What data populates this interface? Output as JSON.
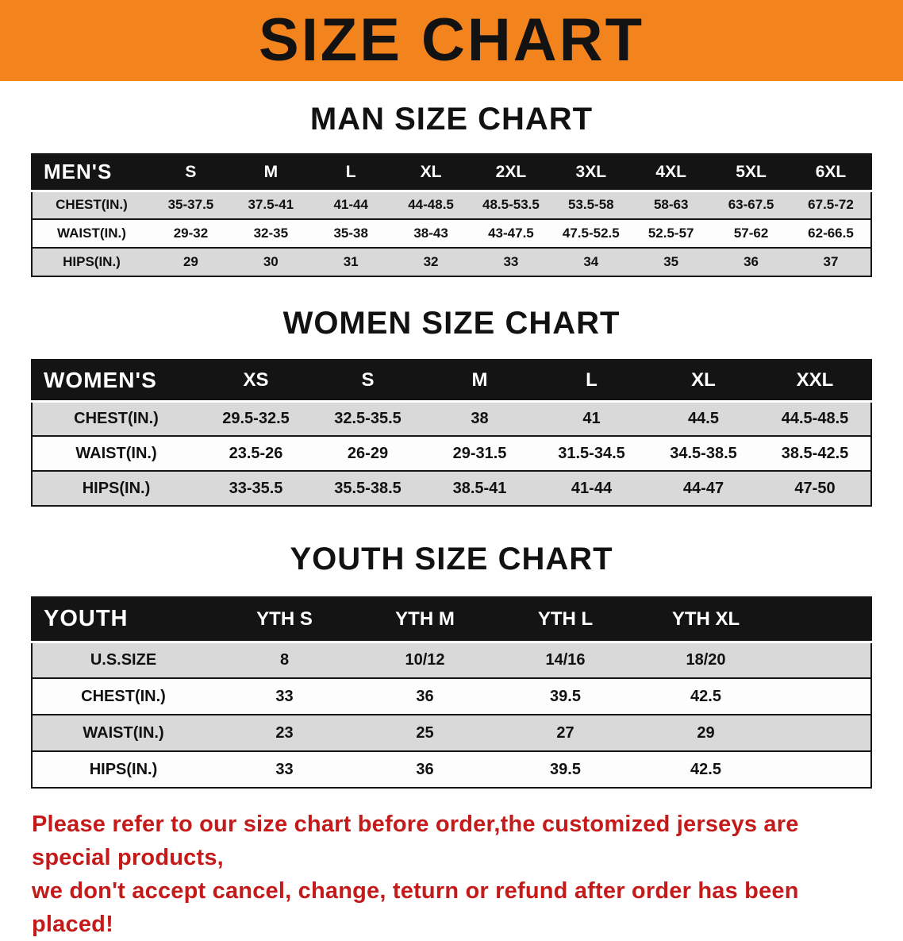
{
  "banner": {
    "title": "SIZE CHART"
  },
  "colors": {
    "banner_bg": "#f2831d",
    "table_header_bg": "#141414",
    "row_alt_bg": "#d9d9d9",
    "footer_text": "#c41a1a"
  },
  "sections": [
    {
      "heading": "MAN SIZE CHART",
      "table": {
        "corner": "MEN'S",
        "columns": [
          "S",
          "M",
          "L",
          "XL",
          "2XL",
          "3XL",
          "4XL",
          "5XL",
          "6XL"
        ],
        "rows": [
          {
            "label": "CHEST(IN.)",
            "values": [
              "35-37.5",
              "37.5-41",
              "41-44",
              "44-48.5",
              "48.5-53.5",
              "53.5-58",
              "58-63",
              "63-67.5",
              "67.5-72"
            ]
          },
          {
            "label": "WAIST(IN.)",
            "values": [
              "29-32",
              "32-35",
              "35-38",
              "38-43",
              "43-47.5",
              "47.5-52.5",
              "52.5-57",
              "57-62",
              "62-66.5"
            ]
          },
          {
            "label": "HIPS(IN.)",
            "values": [
              "29",
              "30",
              "31",
              "32",
              "33",
              "34",
              "35",
              "36",
              "37"
            ]
          }
        ]
      }
    },
    {
      "heading": "WOMEN SIZE CHART",
      "table": {
        "corner": "WOMEN'S",
        "columns": [
          "XS",
          "S",
          "M",
          "L",
          "XL",
          "XXL"
        ],
        "rows": [
          {
            "label": "CHEST(IN.)",
            "values": [
              "29.5-32.5",
              "32.5-35.5",
              "38",
              "41",
              "44.5",
              "44.5-48.5"
            ]
          },
          {
            "label": "WAIST(IN.)",
            "values": [
              "23.5-26",
              "26-29",
              "29-31.5",
              "31.5-34.5",
              "34.5-38.5",
              "38.5-42.5"
            ]
          },
          {
            "label": "HIPS(IN.)",
            "values": [
              "33-35.5",
              "35.5-38.5",
              "38.5-41",
              "41-44",
              "44-47",
              "47-50"
            ]
          }
        ]
      }
    },
    {
      "heading": "YOUTH SIZE CHART",
      "table": {
        "corner": "YOUTH",
        "columns": [
          "YTH S",
          "YTH M",
          "YTH L",
          "YTH XL"
        ],
        "rows": [
          {
            "label": "U.S.SIZE",
            "values": [
              "8",
              "10/12",
              "14/16",
              "18/20"
            ]
          },
          {
            "label": "CHEST(IN.)",
            "values": [
              "33",
              "36",
              "39.5",
              "42.5"
            ]
          },
          {
            "label": "WAIST(IN.)",
            "values": [
              "23",
              "25",
              "27",
              "29"
            ]
          },
          {
            "label": "HIPS(IN.)",
            "values": [
              "33",
              "36",
              "39.5",
              "42.5"
            ]
          }
        ]
      }
    }
  ],
  "footer": {
    "line1": "Please refer to our size chart before order,the customized jerseys are special products,",
    "line2": "we don't accept cancel, change, teturn or refund after order has been placed!"
  }
}
